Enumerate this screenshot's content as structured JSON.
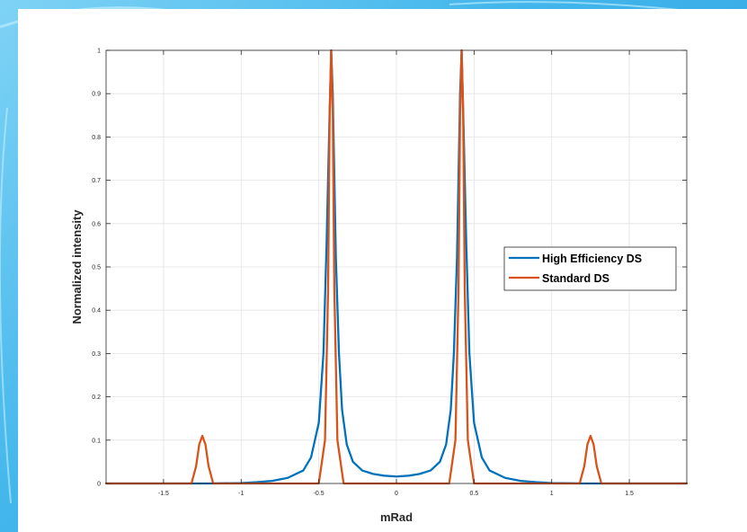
{
  "chart_data": {
    "type": "line",
    "xlabel": "mRad",
    "ylabel": "Normalized intensity",
    "xlim": [
      -1.87,
      1.87
    ],
    "ylim": [
      0,
      1
    ],
    "xticks": [
      -1.5,
      -1,
      -0.5,
      0,
      0.5,
      1,
      1.5
    ],
    "xtick_labels": [
      "-1.5",
      "-1",
      "-0.5",
      "0",
      "0.5",
      "1",
      "1.5"
    ],
    "yticks": [
      0,
      0.1,
      0.2,
      0.3,
      0.4,
      0.5,
      0.6,
      0.7,
      0.8,
      0.9,
      1
    ],
    "ytick_labels": [
      "0",
      "0.1",
      "0.2",
      "0.3",
      "0.4",
      "0.5",
      "0.6",
      "0.7",
      "0.8",
      "0.9",
      "1"
    ],
    "grid": true,
    "legend_position": "right",
    "series": [
      {
        "name": "High Efficiency DS",
        "color": "#0072BD",
        "x": [
          -1.87,
          -1.2,
          -1.0,
          -0.9,
          -0.8,
          -0.7,
          -0.6,
          -0.55,
          -0.5,
          -0.47,
          -0.45,
          -0.43,
          -0.42,
          -0.41,
          -0.39,
          -0.37,
          -0.35,
          -0.32,
          -0.28,
          -0.22,
          -0.15,
          -0.08,
          0,
          0.08,
          0.15,
          0.22,
          0.28,
          0.32,
          0.35,
          0.37,
          0.39,
          0.41,
          0.42,
          0.43,
          0.45,
          0.47,
          0.5,
          0.55,
          0.6,
          0.7,
          0.8,
          0.9,
          1.0,
          1.2,
          1.87
        ],
        "y": [
          0,
          0,
          0.001,
          0.003,
          0.006,
          0.013,
          0.03,
          0.06,
          0.14,
          0.3,
          0.55,
          0.86,
          1.0,
          0.9,
          0.52,
          0.3,
          0.17,
          0.09,
          0.05,
          0.03,
          0.022,
          0.018,
          0.016,
          0.018,
          0.022,
          0.03,
          0.05,
          0.09,
          0.17,
          0.3,
          0.52,
          0.9,
          1.0,
          0.86,
          0.55,
          0.3,
          0.14,
          0.06,
          0.03,
          0.013,
          0.006,
          0.003,
          0.001,
          0,
          0
        ]
      },
      {
        "name": "Standard DS",
        "color": "#D95319",
        "x": [
          -1.87,
          -1.32,
          -1.29,
          -1.27,
          -1.25,
          -1.23,
          -1.21,
          -1.18,
          -0.5,
          -0.46,
          -0.44,
          -0.43,
          -0.42,
          -0.41,
          -0.4,
          -0.38,
          -0.34,
          0.34,
          0.38,
          0.4,
          0.41,
          0.42,
          0.43,
          0.44,
          0.46,
          0.5,
          1.18,
          1.21,
          1.23,
          1.25,
          1.27,
          1.29,
          1.32,
          1.87
        ],
        "y": [
          0,
          0,
          0.04,
          0.09,
          0.11,
          0.09,
          0.04,
          0,
          0,
          0.1,
          0.45,
          0.85,
          1.0,
          0.85,
          0.45,
          0.1,
          0,
          0,
          0.1,
          0.45,
          0.85,
          1.0,
          0.85,
          0.45,
          0.1,
          0,
          0,
          0.04,
          0.09,
          0.11,
          0.09,
          0.04,
          0,
          0
        ]
      }
    ]
  }
}
